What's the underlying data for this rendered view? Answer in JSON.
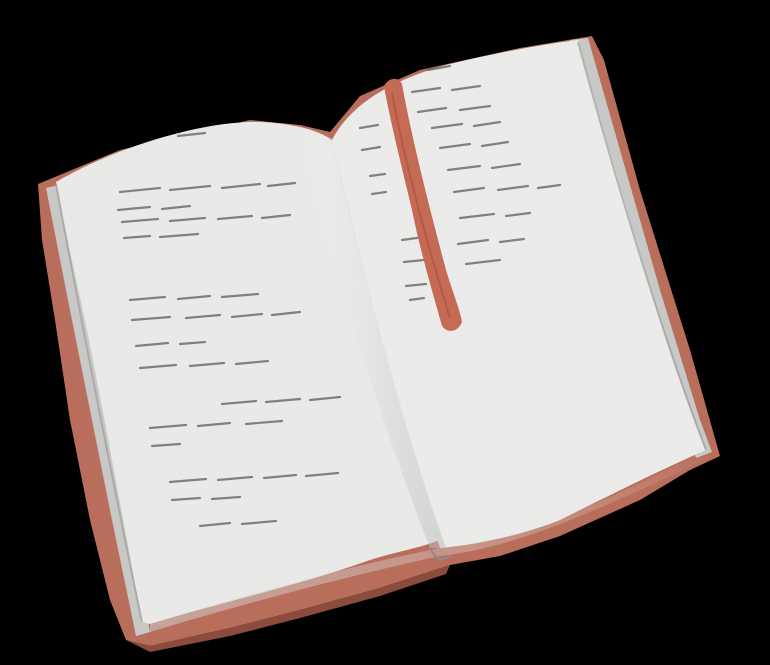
{
  "scene": {
    "subject": "open-book-illustration",
    "style": "watercolor",
    "background_color": "#000000"
  },
  "colors": {
    "cover": "#b96e5c",
    "cover_dark": "#9a5444",
    "page": "#ebebea",
    "page_shadow": "#d6d6d4",
    "page_edge": "#a9a9a9",
    "text_marks": "#5e5e5e",
    "bookmark": "#c56a55",
    "bookmark_dark": "#a4513f"
  },
  "icons": {
    "book": "open-book",
    "bookmark": "ribbon-bookmark"
  }
}
